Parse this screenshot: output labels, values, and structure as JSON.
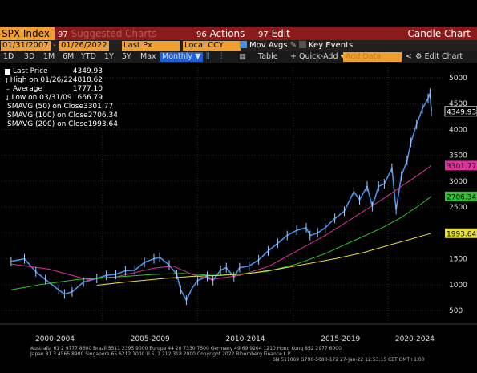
{
  "header": {
    "ticker": "SPX Index",
    "suggested_num": "97",
    "suggested": "Suggested Charts",
    "actions_num": "96",
    "actions": "Actions",
    "edit_num": "97",
    "edit": "Edit",
    "title": "Candle Chart"
  },
  "controls": {
    "start_date": "01/31/2007",
    "end_date": "01/26/2022",
    "price_field": "Last Px",
    "currency": "Local CCY",
    "mov_avgs": "Mov Avgs",
    "key_events": "Key Events"
  },
  "toolbar": {
    "periods": [
      "1D",
      "3D",
      "1M",
      "6M",
      "YTD",
      "1Y",
      "5Y",
      "Max"
    ],
    "frequency": "Monthly",
    "table": "Table",
    "quick_add": "Quick-Add",
    "add_data_placeholder": "Add Data",
    "edit_chart": "Edit Chart"
  },
  "legend": [
    {
      "label": "Last Price",
      "value": "4349.93",
      "color": "#ffffff",
      "marker": "square"
    },
    {
      "label": "High on 01/26/22",
      "value": "4818.62",
      "color": "#ffffff",
      "marker": "up-arrow"
    },
    {
      "label": "Average",
      "value": "1777.10",
      "color": "#ffffff",
      "marker": "dash"
    },
    {
      "label": "Low on 03/31/09",
      "value": "666.79",
      "color": "#ffffff",
      "marker": "down-arrow"
    },
    {
      "label": "SMAVG (50)  on Close",
      "value": "3301.77",
      "color": "#e0309a",
      "marker": "square"
    },
    {
      "label": "SMAVG (100)  on Close",
      "value": "2706.34",
      "color": "#2ec02e",
      "marker": "square"
    },
    {
      "label": "SMAVG (200)  on Close",
      "value": "1993.64",
      "color": "#e8e030",
      "marker": "square"
    }
  ],
  "price_tags": [
    {
      "value": "4349.93",
      "color": "#ffffff"
    },
    {
      "value": "3301.77",
      "color": "#e0309a"
    },
    {
      "value": "2706.34",
      "color": "#2ec02e"
    },
    {
      "value": "1993.64",
      "color": "#e8e030"
    }
  ],
  "footer": {
    "line1": "Australia 61 2 9777 8600  Brazil 5511 2395 9000  Europe 44 20 7330 7500  Germany 49 69 9204 1210  Hong Kong 852 2977 6000",
    "line2": "Japan 81 3 4565 8900          Singapore 65 6212 1000          U.S. 1 212 318 2000          Copyright 2022 Bloomberg Finance L.P.",
    "line3": "SN 511069 G796-5080-172  27-Jan-22 12:53:15 CET  GMT+1:00"
  },
  "chart_data": {
    "type": "line",
    "title": "",
    "y_ticks": [
      500,
      1000,
      1500,
      2000,
      2500,
      3000,
      3500,
      4000,
      4500,
      5000
    ],
    "ylim": [
      300,
      5200
    ],
    "x_labels": [
      "2000-2004",
      "2005-2009",
      "2010-2014",
      "2015-2019",
      "2020-2024"
    ],
    "xlim": [
      1999.5,
      2022.7
    ],
    "series": [
      {
        "name": "Last Price",
        "color": "#4a90e2",
        "x": [
          2000.0,
          2000.7,
          2001.3,
          2001.8,
          2002.5,
          2002.8,
          2003.2,
          2003.8,
          2004.5,
          2005.0,
          2005.5,
          2006.0,
          2006.5,
          2007.0,
          2007.5,
          2007.8,
          2008.3,
          2008.7,
          2008.9,
          2009.2,
          2009.5,
          2009.8,
          2010.3,
          2010.6,
          2011.0,
          2011.3,
          2011.7,
          2012.0,
          2012.5,
          2013.0,
          2013.5,
          2014.0,
          2014.5,
          2015.0,
          2015.5,
          2015.7,
          2016.1,
          2016.5,
          2017.0,
          2017.5,
          2018.0,
          2018.3,
          2018.7,
          2018.97,
          2019.3,
          2019.6,
          2020.0,
          2020.22,
          2020.5,
          2020.8,
          2021.0,
          2021.3,
          2021.6,
          2021.9,
          2022.0,
          2022.07
        ],
        "y": [
          1450,
          1500,
          1250,
          1100,
          900,
          820,
          860,
          1050,
          1120,
          1180,
          1200,
          1270,
          1280,
          1430,
          1500,
          1530,
          1380,
          1200,
          900,
          700,
          930,
          1080,
          1160,
          1080,
          1280,
          1330,
          1150,
          1330,
          1360,
          1480,
          1650,
          1800,
          1950,
          2050,
          2100,
          1950,
          2000,
          2100,
          2280,
          2420,
          2800,
          2640,
          2900,
          2510,
          2900,
          2950,
          3250,
          2450,
          3100,
          3400,
          3750,
          4100,
          4400,
          4600,
          4700,
          4350
        ]
      },
      {
        "name": "SMAVG (50) on Close",
        "color": "#e0309a",
        "x": [
          2000.0,
          2002.0,
          2004.0,
          2005.5,
          2007.5,
          2008.5,
          2009.5,
          2010.5,
          2012.0,
          2013.5,
          2015.0,
          2016.5,
          2018.0,
          2019.5,
          2020.5,
          2021.5,
          2022.07
        ],
        "y": [
          1400,
          1300,
          1100,
          1150,
          1320,
          1360,
          1200,
          1100,
          1180,
          1350,
          1650,
          1950,
          2300,
          2650,
          2900,
          3150,
          3301.77
        ]
      },
      {
        "name": "SMAVG (100) on Close",
        "color": "#2ec02e",
        "x": [
          2000.0,
          2001.5,
          2003.5,
          2005.5,
          2007.5,
          2009.0,
          2010.5,
          2012.0,
          2013.5,
          2015.0,
          2016.5,
          2018.0,
          2019.5,
          2020.5,
          2021.5,
          2022.07
        ],
        "y": [
          900,
          1000,
          1100,
          1150,
          1200,
          1220,
          1180,
          1200,
          1260,
          1400,
          1600,
          1850,
          2100,
          2300,
          2550,
          2706.34
        ]
      },
      {
        "name": "SMAVG (200) on Close",
        "color": "#e8e030",
        "x": [
          2004.5,
          2006.0,
          2008.0,
          2009.5,
          2011.0,
          2012.5,
          2014.0,
          2015.5,
          2017.0,
          2018.5,
          2020.0,
          2021.0,
          2022.07
        ],
        "y": [
          990,
          1050,
          1120,
          1160,
          1180,
          1220,
          1300,
          1400,
          1500,
          1620,
          1780,
          1880,
          1993.64
        ]
      }
    ]
  }
}
